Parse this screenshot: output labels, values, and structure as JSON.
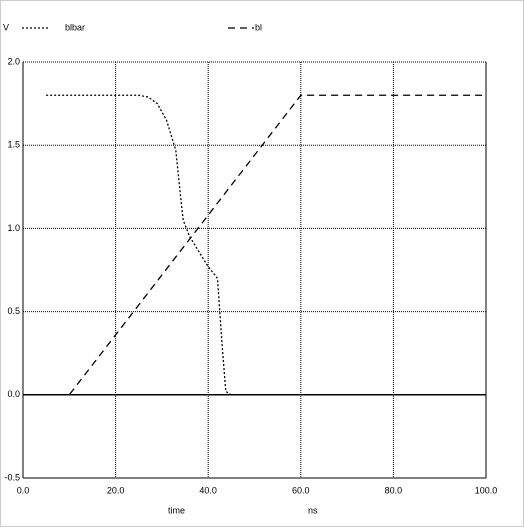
{
  "chart_data": {
    "type": "line",
    "y_label": "V",
    "x_label": "time",
    "x_unit": "ns",
    "xlim": [
      0,
      100
    ],
    "xticks": [
      {
        "value": 0,
        "label": "0.0"
      },
      {
        "value": 20,
        "label": "20.0"
      },
      {
        "value": 40,
        "label": "40.0"
      },
      {
        "value": 60,
        "label": "60.0"
      },
      {
        "value": 80,
        "label": "80.0"
      },
      {
        "value": 100,
        "label": "100.0"
      }
    ],
    "ylim": [
      -0.5,
      2.0
    ],
    "yticks": [
      {
        "value": -0.5,
        "label": "-0.5"
      },
      {
        "value": 0,
        "label": "0.0"
      },
      {
        "value": 0.5,
        "label": "0.5"
      },
      {
        "value": 1.0,
        "label": "1.0"
      },
      {
        "value": 1.5,
        "label": "1.5"
      },
      {
        "value": 2.0,
        "label": "2.0"
      }
    ],
    "grid": true,
    "series": [
      {
        "name": "blbar",
        "color": "#000000",
        "dash": "dotted",
        "x": [
          5,
          25,
          27,
          29,
          31,
          32,
          33,
          34,
          34.6,
          36,
          38,
          40,
          42,
          43,
          43.8,
          45,
          100
        ],
        "values": [
          1.8,
          1.8,
          1.79,
          1.75,
          1.65,
          1.56,
          1.47,
          1.2,
          1.05,
          0.95,
          0.86,
          0.77,
          0.7,
          0.3,
          0.02,
          0.0,
          0.0
        ]
      },
      {
        "name": "bl",
        "color": "#000000",
        "dash": "dashed",
        "x": [
          5,
          10,
          60,
          100
        ],
        "values": [
          0,
          0,
          1.8,
          1.8
        ]
      }
    ]
  }
}
